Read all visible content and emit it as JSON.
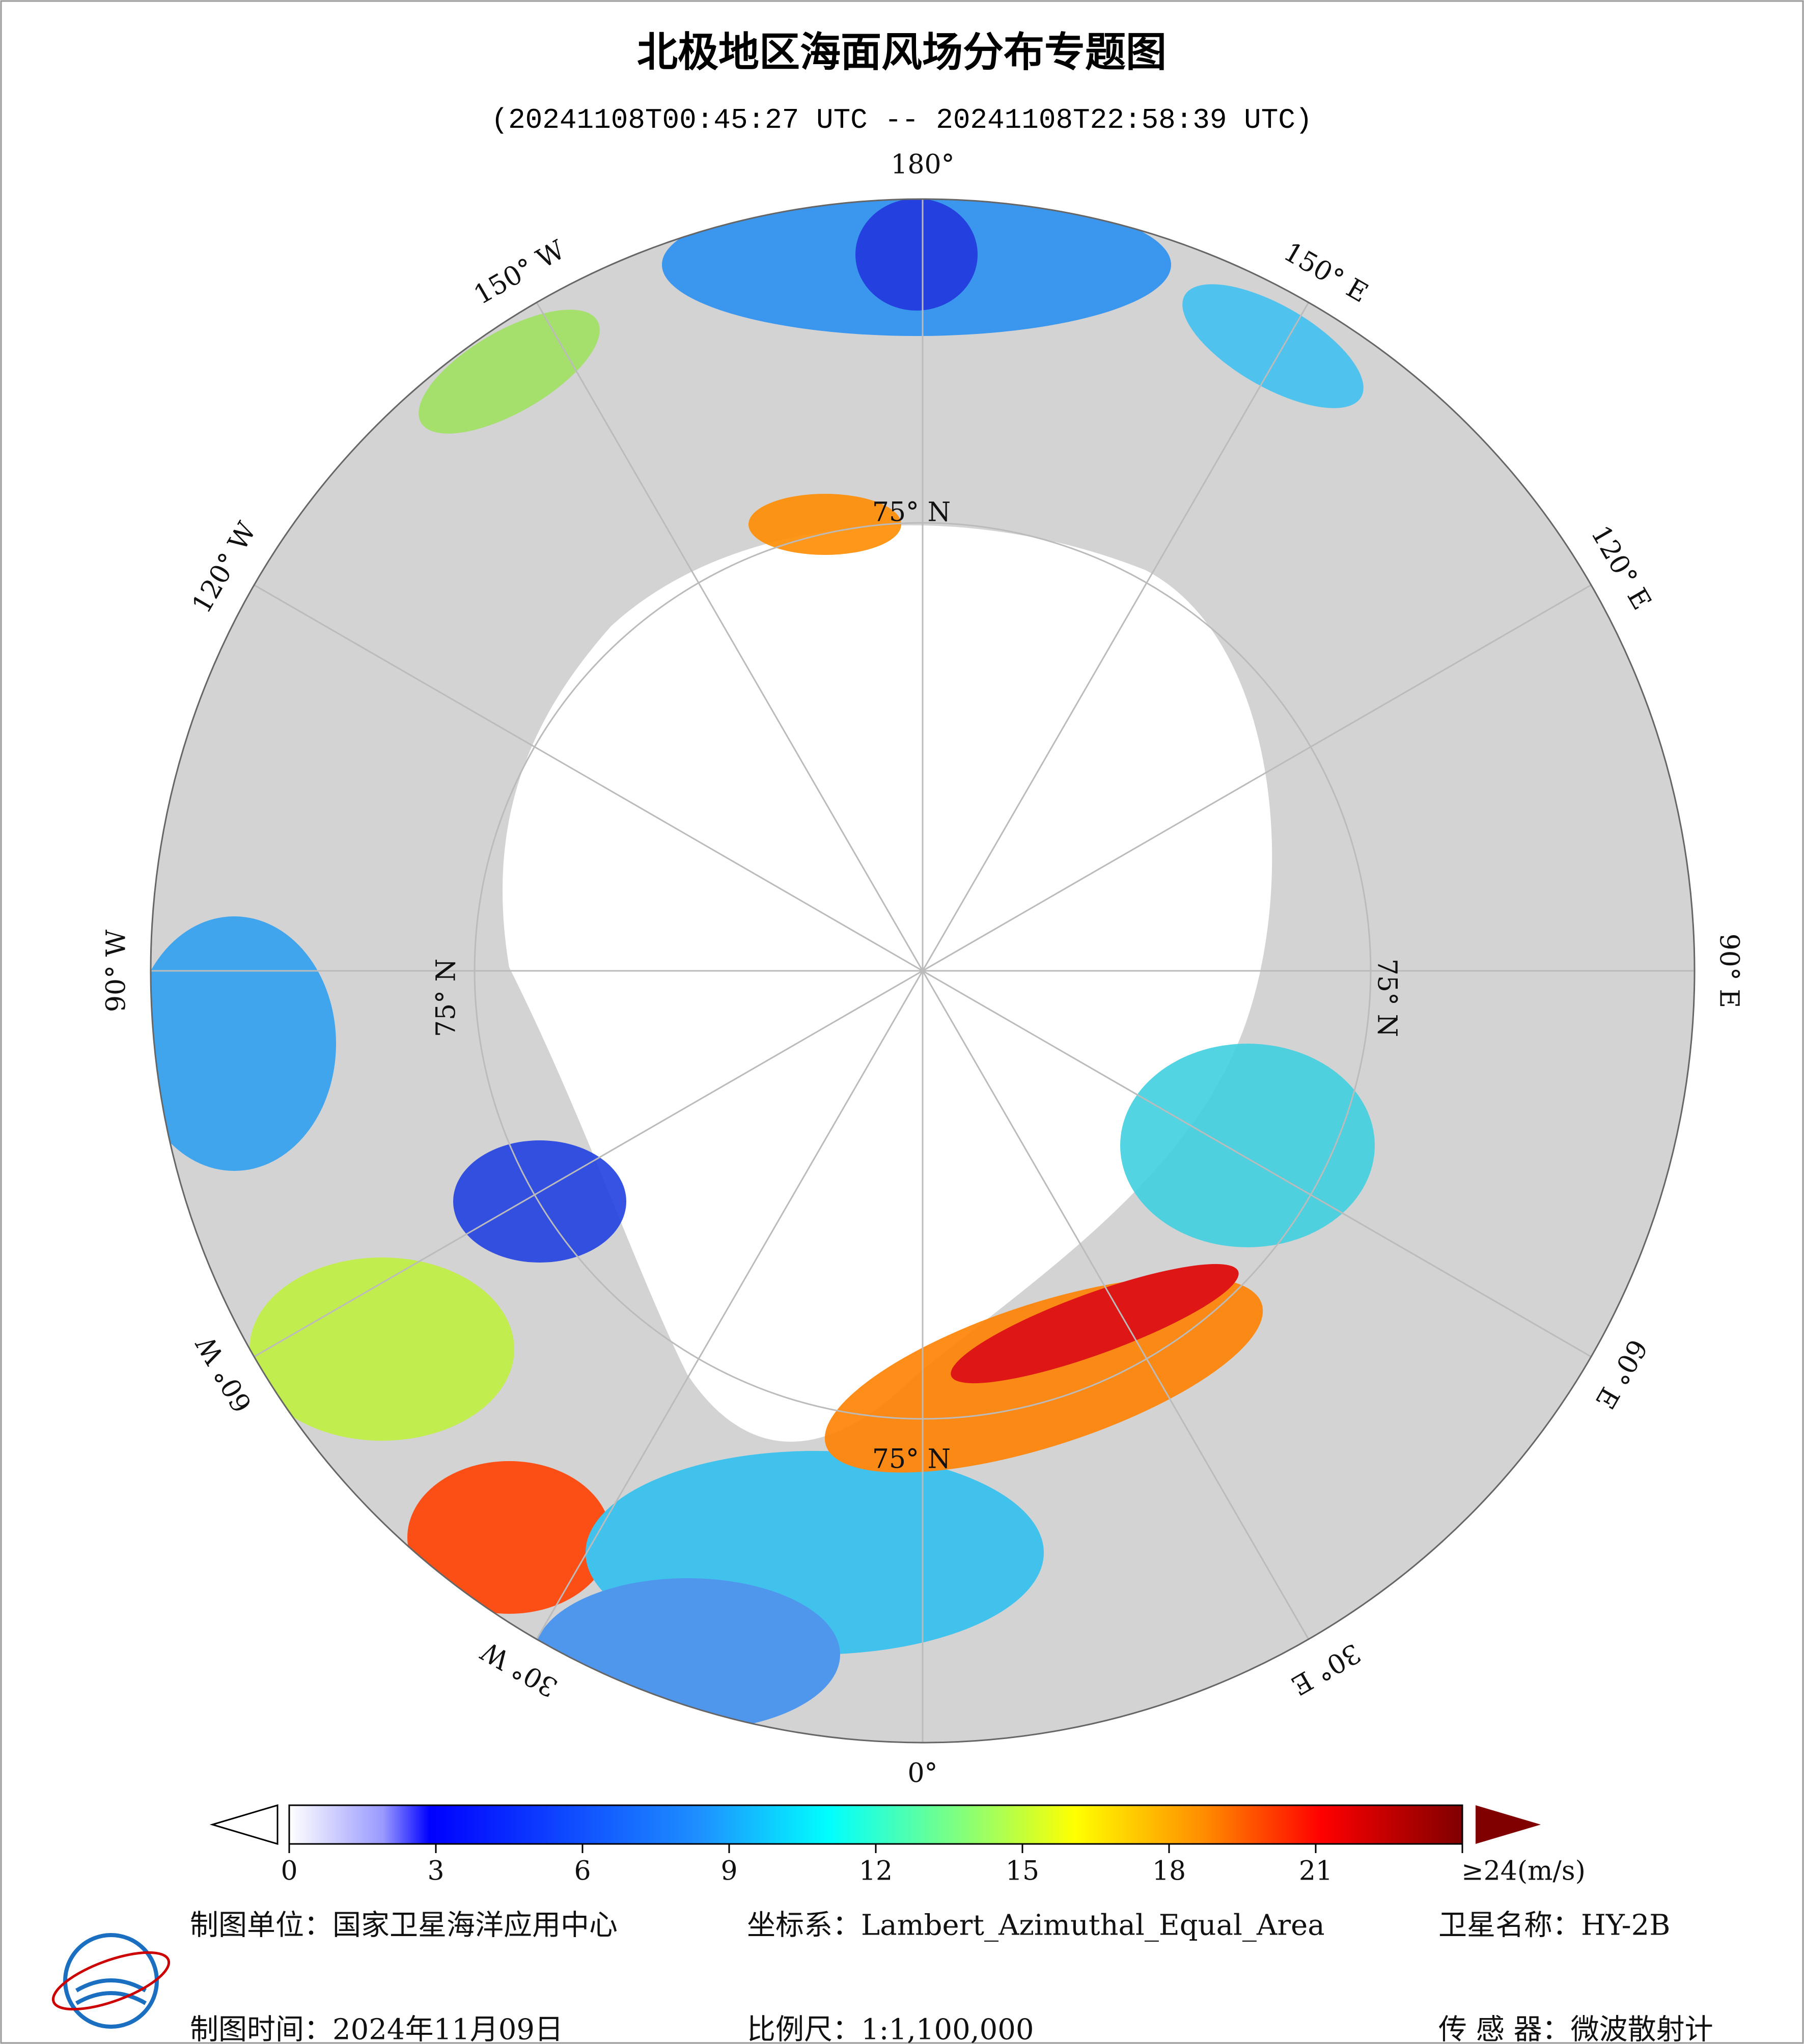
{
  "header": {
    "title": "北极地区海面风场分布专题图",
    "subtitle": "(20241108T00:45:27 UTC -- 20241108T22:58:39 UTC)"
  },
  "map": {
    "longitude_labels": [
      "180°",
      "150° E",
      "120° E",
      "90° E",
      "60° E",
      "30° E",
      "0°",
      "30° W",
      "60° W",
      "90° W",
      "120° W",
      "150° W"
    ],
    "latitude_labels": [
      "75° N",
      "75° N",
      "75° N",
      "75° N"
    ]
  },
  "colorbar": {
    "range": [
      0,
      24
    ],
    "ticks": [
      0,
      3,
      6,
      9,
      12,
      15,
      18,
      21,
      {
        "value": 24,
        "label": "≥24(m/s)"
      }
    ]
  },
  "footer": {
    "producer": "制图单位：国家卫星海洋应用中心",
    "coordinate_system": "坐标系：Lambert_Azimuthal_Equal_Area",
    "satellite": "卫星名称：HY-2B",
    "date": "制图时间：2024年11月09日",
    "scale": "比例尺：1:1,100,000",
    "sensor": "传 感 器：微波散射计"
  }
}
